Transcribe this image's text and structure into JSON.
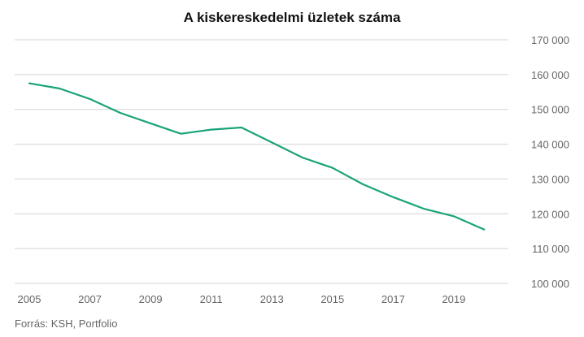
{
  "chart_data": {
    "type": "line",
    "title": "A kiskereskedelmi üzletek száma",
    "xlabel": "",
    "ylabel": "",
    "x": [
      2005,
      2006,
      2007,
      2008,
      2009,
      2010,
      2011,
      2012,
      2013,
      2014,
      2015,
      2016,
      2017,
      2018,
      2019,
      2020
    ],
    "x_ticks": [
      "2005",
      "2007",
      "2009",
      "2011",
      "2013",
      "2015",
      "2017",
      "2019"
    ],
    "y_ticks": [
      "100 000",
      "110 000",
      "120 000",
      "130 000",
      "140 000",
      "150 000",
      "160 000",
      "170 000"
    ],
    "ylim": [
      100000,
      170000
    ],
    "xlim": [
      2005,
      2020.8
    ],
    "grid": true,
    "y_axis_side": "right",
    "series": [
      {
        "color": "#1aa37a",
        "values": [
          157500,
          156000,
          153000,
          149000,
          146000,
          143000,
          144200,
          144800,
          140500,
          136200,
          133200,
          128500,
          124800,
          121500,
          119300,
          115500
        ]
      }
    ],
    "source": "Forrás: KSH, Portfolio"
  }
}
